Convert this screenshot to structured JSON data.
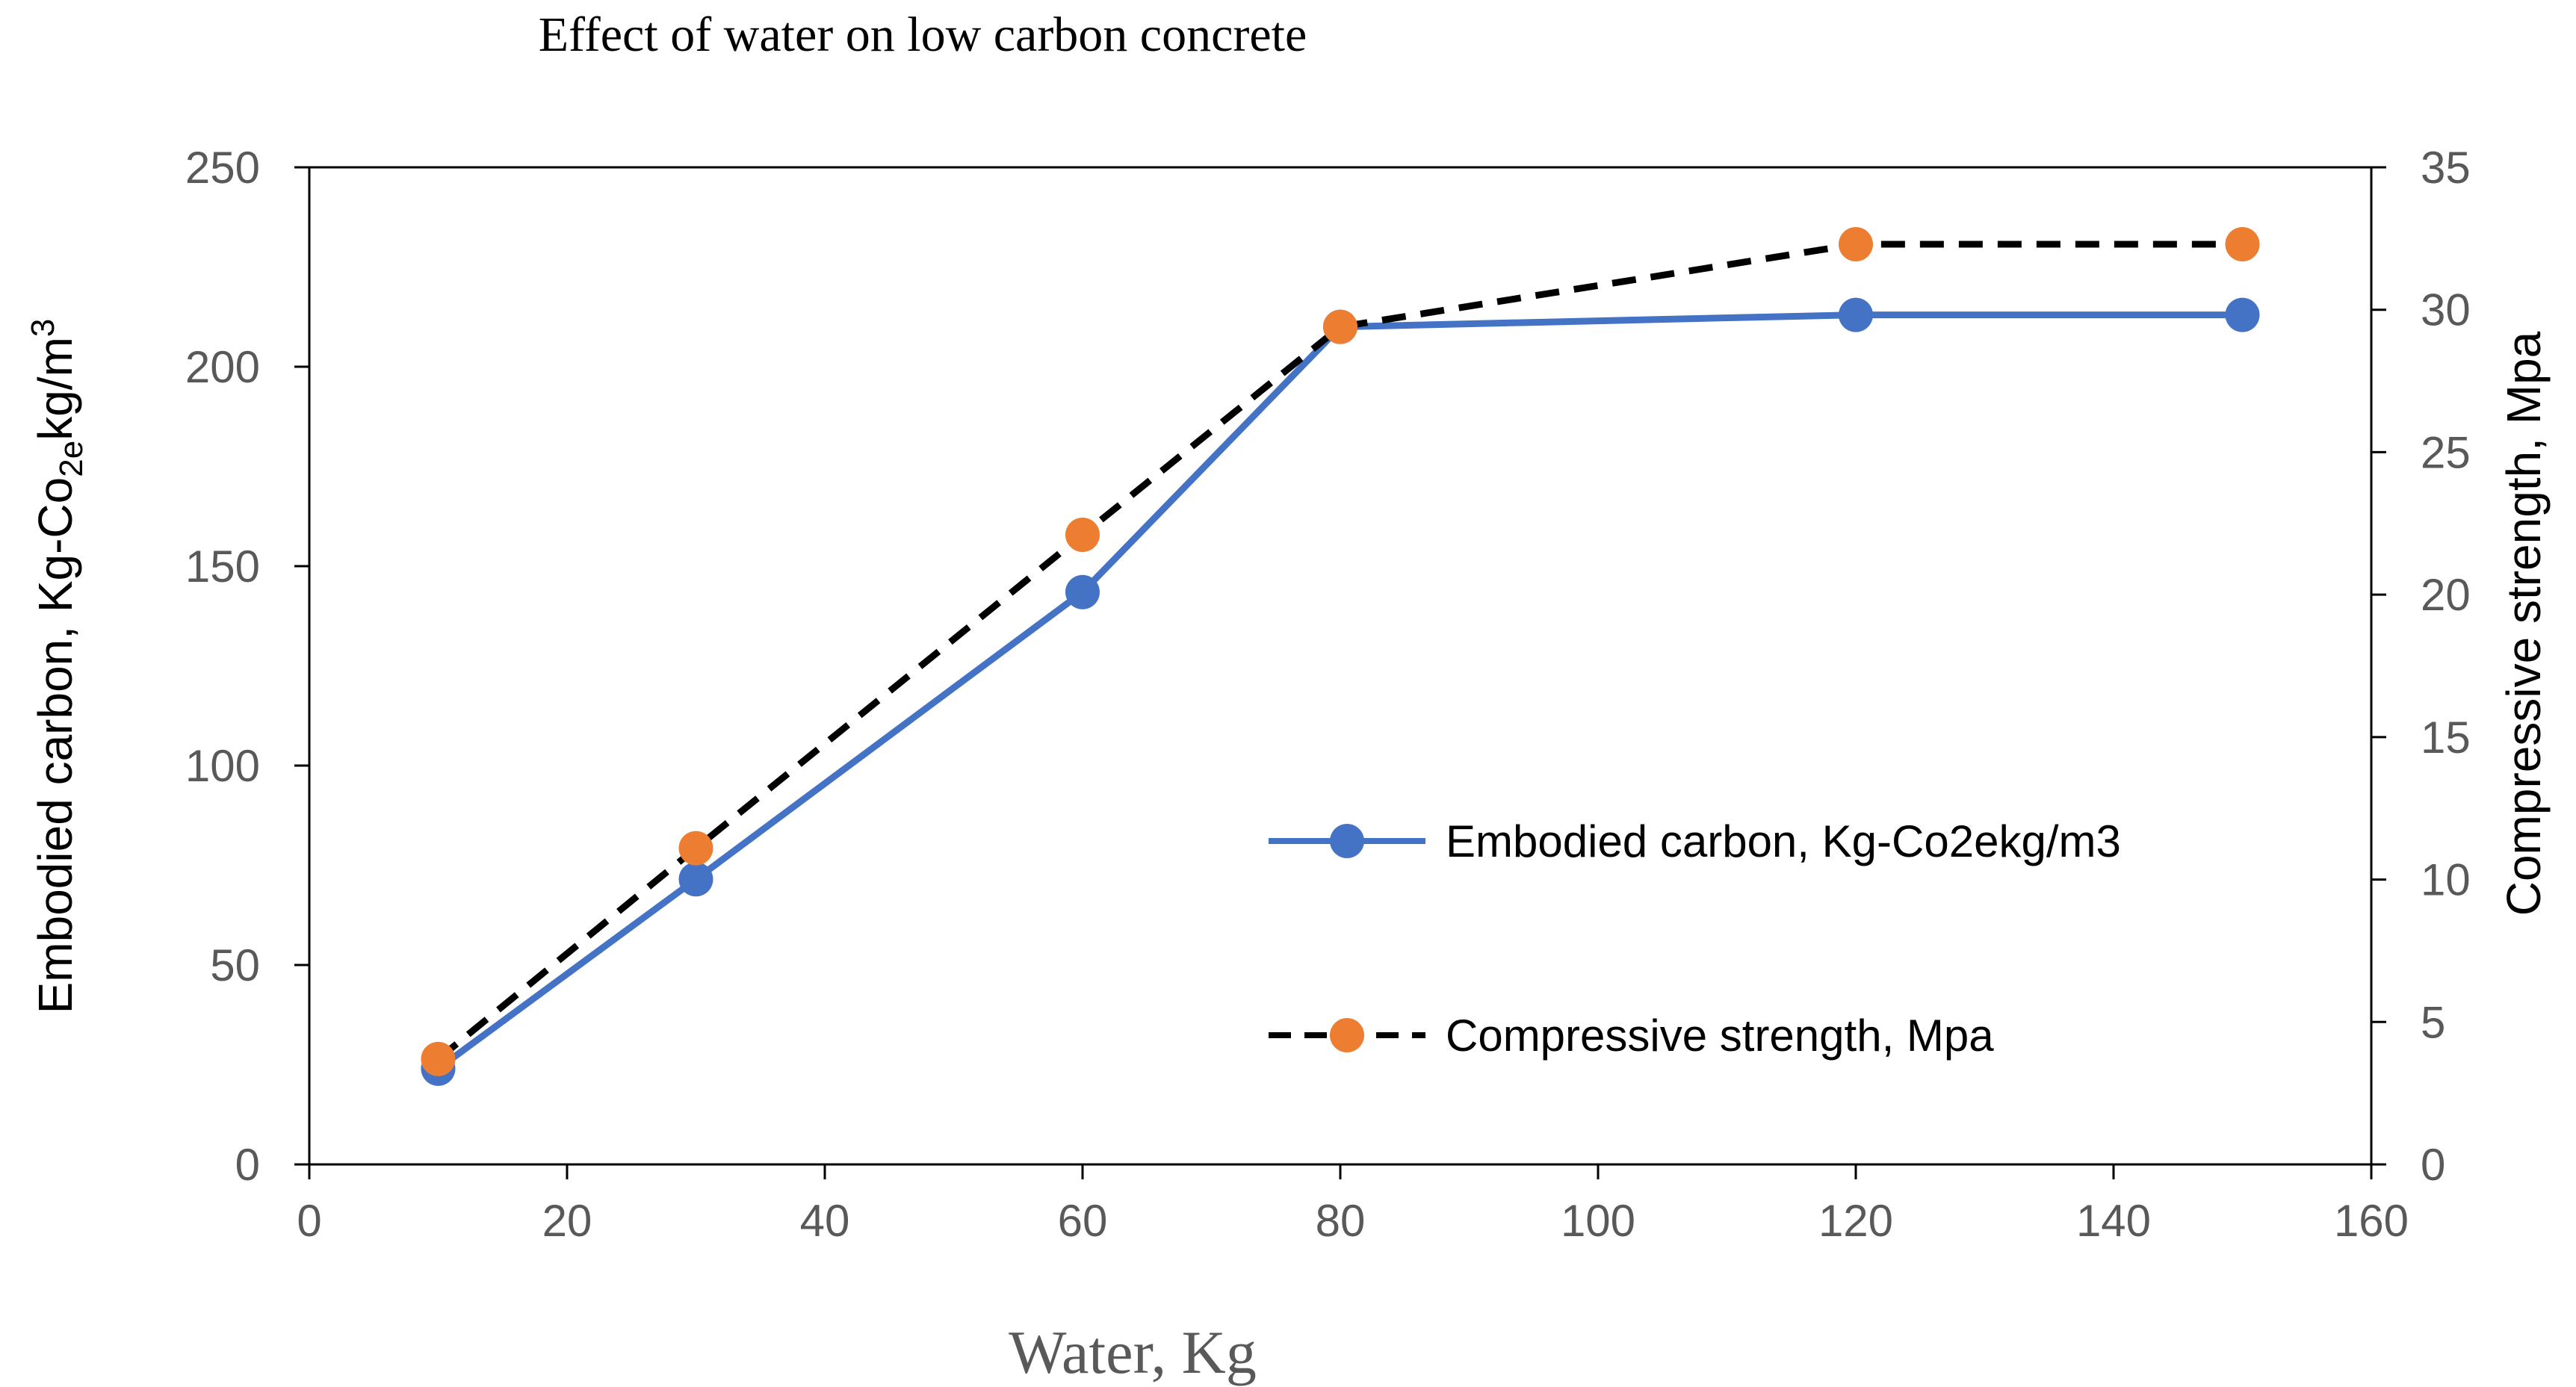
{
  "chart_data": {
    "type": "line",
    "title": "Effect of water on low carbon concrete",
    "xlabel": "Water, Kg",
    "ylabel_left": {
      "text": "Embodied carbon, Kg-Co",
      "sub": "2e",
      "mid": "kg/m",
      "sup": "3"
    },
    "ylabel_right": "Compressive strength, Mpa",
    "xlim": [
      0,
      160
    ],
    "ylim_left": [
      0,
      250
    ],
    "ylim_right": [
      0,
      35
    ],
    "x_ticks": [
      "0",
      "20",
      "40",
      "60",
      "80",
      "100",
      "120",
      "140",
      "160"
    ],
    "y_left_ticks": [
      "0",
      "50",
      "100",
      "150",
      "200",
      "250"
    ],
    "y_right_ticks": [
      "0",
      "5",
      "10",
      "15",
      "20",
      "25",
      "30",
      "35"
    ],
    "legend_position": "center-right",
    "series": [
      {
        "name": "Embodied carbon, Kg-Co2ekg/m3",
        "axis": "left",
        "line_style": "solid",
        "line_color": "#4472C4",
        "marker_color": "#4472C4",
        "x": [
          10,
          30,
          60,
          80,
          120,
          150
        ],
        "values": [
          24,
          71.5,
          143.5,
          210,
          213,
          213
        ]
      },
      {
        "name": "Compressive strength, Mpa",
        "axis": "right",
        "line_style": "dashed",
        "line_color": "#000000",
        "marker_color": "#ED7D31",
        "x": [
          10,
          30,
          60,
          80,
          120,
          150
        ],
        "values": [
          3.7,
          11.1,
          22.1,
          29.4,
          32.3,
          32.3
        ]
      }
    ]
  }
}
